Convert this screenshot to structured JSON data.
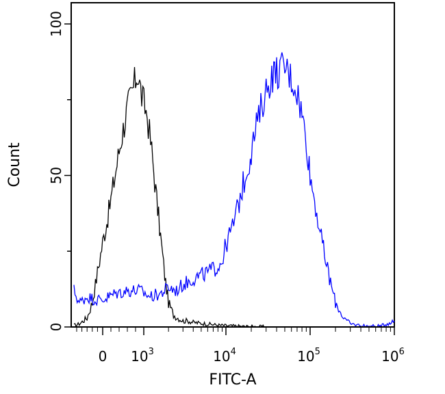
{
  "chart_data": {
    "type": "line",
    "title": "",
    "xlabel": "FITC-A",
    "ylabel": "Count",
    "x_scale": "biexponential",
    "ylim": [
      0,
      107
    ],
    "grid": false,
    "legend": "none",
    "y_ticks": [
      {
        "value": 0,
        "label": "0"
      },
      {
        "value": 50,
        "label": "50"
      },
      {
        "value": 100,
        "label": "100"
      }
    ],
    "x_ticks": [
      {
        "value": 0,
        "base": "0",
        "exp": ""
      },
      {
        "value": 1000,
        "base": "10",
        "exp": "3"
      },
      {
        "value": 10000,
        "base": "10",
        "exp": "4"
      },
      {
        "value": 100000,
        "base": "10",
        "exp": "5"
      },
      {
        "value": 1000000,
        "base": "10",
        "exp": "6"
      }
    ],
    "series": [
      {
        "color": "#000000",
        "x": [
          -1200,
          -900,
          -600,
          -400,
          -200,
          0,
          150,
          300,
          450,
          600,
          750,
          850,
          950,
          1100,
          1250,
          1400,
          1600,
          1800,
          2000,
          2300,
          2600,
          3000,
          3500,
          4000,
          5000,
          6000,
          8000,
          10000,
          15000,
          30000
        ],
        "y": [
          0.5,
          1,
          3,
          8,
          18,
          28,
          38,
          50,
          62,
          72,
          79,
          84,
          76,
          70,
          58,
          45,
          30,
          17,
          8,
          4,
          3,
          2,
          2,
          1.5,
          1.2,
          1,
          0.6,
          0.4,
          0.2,
          0
        ]
      },
      {
        "color": "#0000ff",
        "x": [
          -1200,
          -900,
          -600,
          -300,
          0,
          300,
          600,
          900,
          1200,
          1600,
          2000,
          2500,
          3000,
          3500,
          4000,
          5000,
          6000,
          7000,
          8000,
          9000,
          10000,
          12000,
          14000,
          16000,
          18000,
          20000,
          23000,
          26000,
          30000,
          35000,
          40000,
          45000,
          50000,
          55000,
          60000,
          70000,
          80000,
          90000,
          100000,
          120000,
          140000,
          170000,
          200000,
          250000,
          300000,
          400000,
          500000,
          700000,
          1000000
        ],
        "y": [
          12,
          8,
          10,
          9,
          9,
          11,
          12,
          12,
          10,
          11,
          13,
          12,
          14,
          15,
          16,
          17,
          18,
          19,
          20,
          22,
          27,
          33,
          40,
          47,
          52,
          58,
          66,
          72,
          78,
          83,
          84,
          85,
          86,
          84,
          82,
          78,
          70,
          62,
          50,
          38,
          27,
          16,
          8,
          3,
          1,
          0.5,
          0.2,
          0.3,
          2
        ]
      }
    ]
  }
}
